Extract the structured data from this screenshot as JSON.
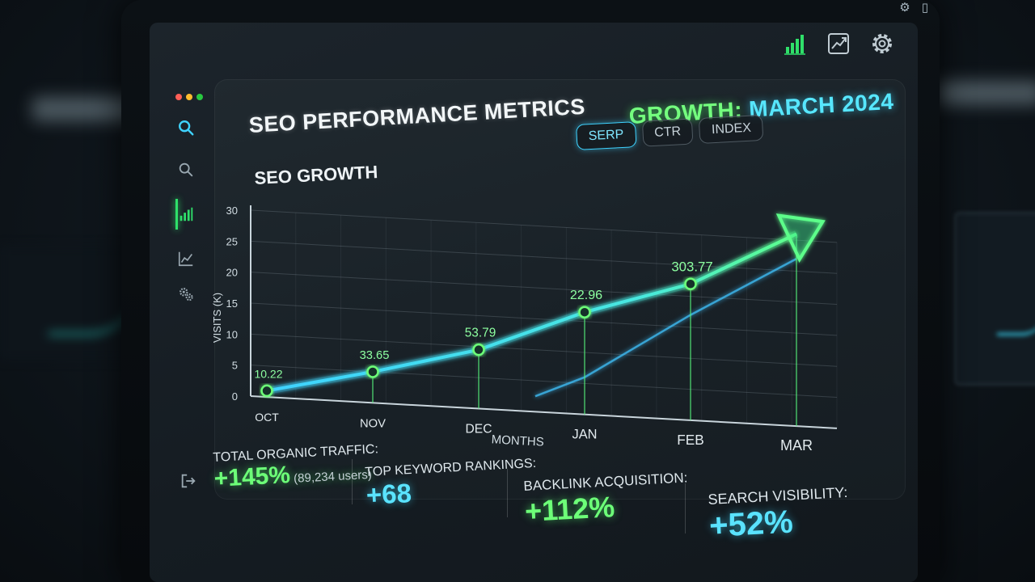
{
  "colors": {
    "accent_green": "#6dff78",
    "accent_cyan": "#5ae3ff",
    "panel_bg": "#1c242b"
  },
  "sidebar": {
    "items": [
      {
        "icon": "search-icon"
      },
      {
        "icon": "search-icon"
      },
      {
        "icon": "bar-chart-icon",
        "active": true
      },
      {
        "icon": "line-chart-icon"
      },
      {
        "icon": "gears-icon"
      }
    ],
    "bottom_icon": "logout-icon"
  },
  "header": {
    "title": "SEO PERFORMANCE METRICS",
    "growth_label": "GROWTH:",
    "growth_date": "MARCH 2024",
    "icons": [
      "bar-chart-icon",
      "trend-chart-icon",
      "gear-icon"
    ]
  },
  "tabs": [
    {
      "label": "SERP",
      "active": true
    },
    {
      "label": "CTR",
      "active": false
    },
    {
      "label": "INDEX",
      "active": false
    }
  ],
  "chart_data": {
    "type": "line",
    "title": "SEO GROWTH",
    "xlabel": "MONTHS",
    "ylabel": "VISITS (K)",
    "categories": [
      "OCT",
      "NOV",
      "DEC",
      "JAN",
      "FEB",
      "MAR"
    ],
    "yticks": [
      "0",
      "5",
      "10",
      "15",
      "20",
      "25",
      "30"
    ],
    "ylim": [
      0,
      30
    ],
    "grid": true,
    "series": [
      {
        "values": [
          1,
          5,
          9.5,
          16.5,
          22,
          31
        ]
      },
      {
        "values": [
          null,
          null,
          null,
          6,
          17,
          27
        ]
      }
    ],
    "point_labels": [
      "10.22",
      "33.65",
      "53.79",
      "22.96",
      "303.77"
    ]
  },
  "metrics": [
    {
      "label": "TOTAL ORGANIC TRAFFIC:",
      "value": "+145%",
      "note": "(89,234 users)",
      "color": "green"
    },
    {
      "label": "TOP KEYWORD RANKINGS:",
      "value": "+68",
      "color": "cyan"
    },
    {
      "label": "BACKLINK ACQUISITION:",
      "value": "+112%",
      "color": "green"
    },
    {
      "label": "SEARCH VISIBILITY:",
      "value": "+52%",
      "color": "cyan"
    }
  ]
}
